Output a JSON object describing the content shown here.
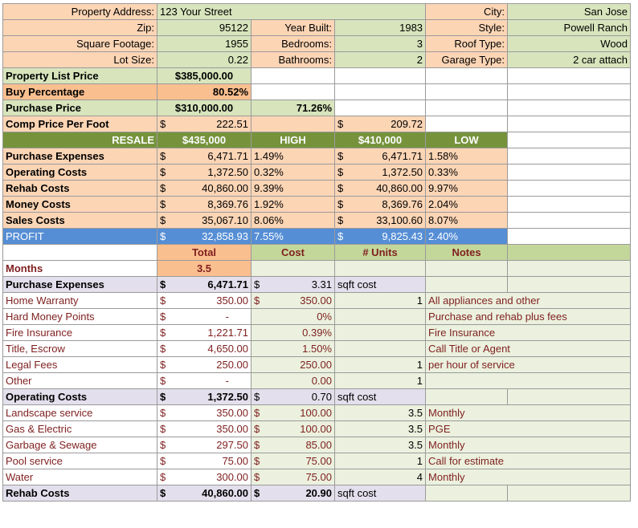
{
  "property": {
    "address_label": "Property Address:",
    "address": "123 Your Street",
    "city_label": "City:",
    "city": "San Jose",
    "zip_label": "Zip:",
    "zip": "95122",
    "year_built_label": "Year Built:",
    "year_built": "1983",
    "style_label": "Style:",
    "style": "Powell Ranch",
    "sqft_label": "Square Footage:",
    "sqft": "1955",
    "bedrooms_label": "Bedrooms:",
    "bedrooms": "3",
    "roof_label": "Roof Type:",
    "roof": "Wood",
    "lot_label": "Lot Size:",
    "lot": "0.22",
    "bathrooms_label": "Bathrooms:",
    "bathrooms": "2",
    "garage_label": "Garage Type:",
    "garage": "2 car attach"
  },
  "pricing": {
    "list_label": "Property List Price",
    "list_value": "$385,000.00",
    "buy_label": "Buy Percentage",
    "buy_value": "80.52%",
    "purchase_label": "Purchase Price",
    "purchase_value": "$310,000.00",
    "purchase_pct": "71.26%",
    "comp_label": "Comp Price Per Foot",
    "comp_sym": "$",
    "comp_high": "222.51",
    "comp_sym2": "$",
    "comp_low": "209.72"
  },
  "resale": {
    "label": "RESALE",
    "high_value": "$435,000",
    "high_label": "HIGH",
    "low_value": "$410,000",
    "low_label": "LOW",
    "rows": [
      {
        "label": "Purchase Expenses",
        "h": "6,471.71",
        "hp": "1.49%",
        "l": "6,471.71",
        "lp": "1.58%"
      },
      {
        "label": "Operating Costs",
        "h": "1,372.50",
        "hp": "0.32%",
        "l": "1,372.50",
        "lp": "0.33%"
      },
      {
        "label": "Rehab Costs",
        "h": "40,860.00",
        "hp": "9.39%",
        "l": "40,860.00",
        "lp": "9.97%"
      },
      {
        "label": "Money Costs",
        "h": "8,369.76",
        "hp": "1.92%",
        "l": "8,369.76",
        "lp": "2.04%"
      },
      {
        "label": "Sales Costs",
        "h": "35,067.10",
        "hp": "8.06%",
        "l": "33,100.60",
        "lp": "8.07%"
      }
    ],
    "profit_label": "PROFIT",
    "profit_h": "32,858.93",
    "profit_hp": "7.55%",
    "profit_l": "9,825.43",
    "profit_lp": "2.40%",
    "currency": "$"
  },
  "headers": {
    "total": "Total",
    "cost": "Cost",
    "units": "# Units",
    "notes": "Notes"
  },
  "months": {
    "label": "Months",
    "value": "3.5"
  },
  "purchase_expenses": {
    "label": "Purchase Expenses",
    "total": "6,471.71",
    "cost": "3.31",
    "unit_note": "sqft cost",
    "items": [
      {
        "label": "Home Warranty",
        "total": "350.00",
        "cost_sym": "$",
        "cost": "350.00",
        "units": "1",
        "note": "All appliances and other"
      },
      {
        "label": "Hard Money Points",
        "total": "-",
        "cost_sym": "",
        "cost": "0%",
        "units": "",
        "note": "Purchase and rehab plus fees"
      },
      {
        "label": "Fire Insurance",
        "total": "1,221.71",
        "cost_sym": "",
        "cost": "0.39%",
        "units": "",
        "note": "Fire Insurance"
      },
      {
        "label": "Title, Escrow",
        "total": "4,650.00",
        "cost_sym": "",
        "cost": "1.50%",
        "units": "",
        "note": "Call Title or Agent"
      },
      {
        "label": "Legal Fees",
        "total": "250.00",
        "cost_sym": "",
        "cost": "250.00",
        "units": "1",
        "note": "per hour of service"
      },
      {
        "label": "Other",
        "total": "-",
        "cost_sym": "",
        "cost": "0.00",
        "units": "1",
        "note": ""
      }
    ]
  },
  "operating_costs": {
    "label": "Operating Costs",
    "total": "1,372.50",
    "cost": "0.70",
    "unit_note": "sqft cost",
    "items": [
      {
        "label": "Landscape service",
        "total": "350.00",
        "cost": "100.00",
        "units": "3.5",
        "note": "Monthly"
      },
      {
        "label": "Gas & Electric",
        "total": "350.00",
        "cost": "100.00",
        "units": "3.5",
        "note": "PGE"
      },
      {
        "label": "Garbage & Sewage",
        "total": "297.50",
        "cost": "85.00",
        "units": "3.5",
        "note": "Monthly"
      },
      {
        "label": "Pool service",
        "total": "75.00",
        "cost": "75.00",
        "units": "1",
        "note": "Call for estimate"
      },
      {
        "label": "Water",
        "total": "300.00",
        "cost": "75.00",
        "units": "4",
        "note": "Monthly"
      }
    ]
  },
  "rehab_costs": {
    "label": "Rehab Costs",
    "total": "40,860.00",
    "cost": "20.90",
    "unit_note": "sqft cost"
  },
  "currency": "$"
}
